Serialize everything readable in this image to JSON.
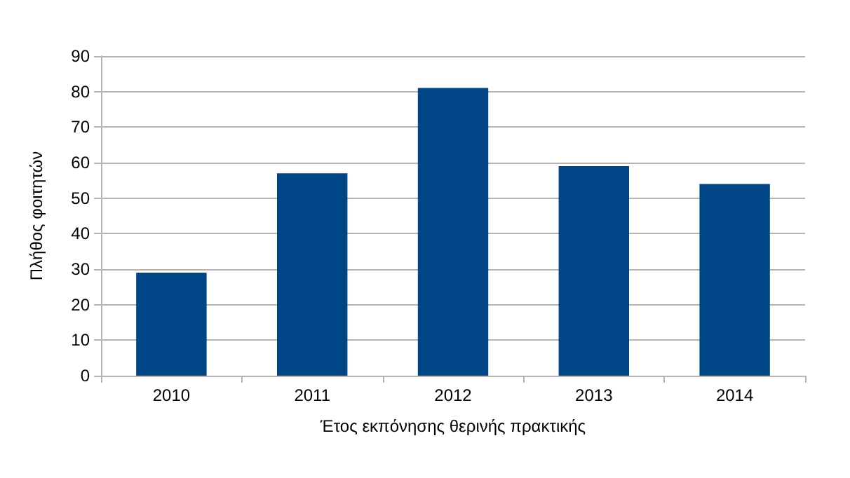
{
  "chart_data": {
    "type": "bar",
    "xlabel": "Έτος εκπόνησης θερινής πρακτικής",
    "ylabel": "Πλήθος φοιτητών",
    "categories": [
      "2010",
      "2011",
      "2012",
      "2013",
      "2014"
    ],
    "values": [
      29,
      57,
      81,
      59,
      54
    ],
    "color": "#004586",
    "ylim": [
      0,
      90
    ],
    "yticks": [
      0,
      10,
      20,
      30,
      40,
      50,
      60,
      70,
      80,
      90
    ],
    "grid": "y"
  }
}
